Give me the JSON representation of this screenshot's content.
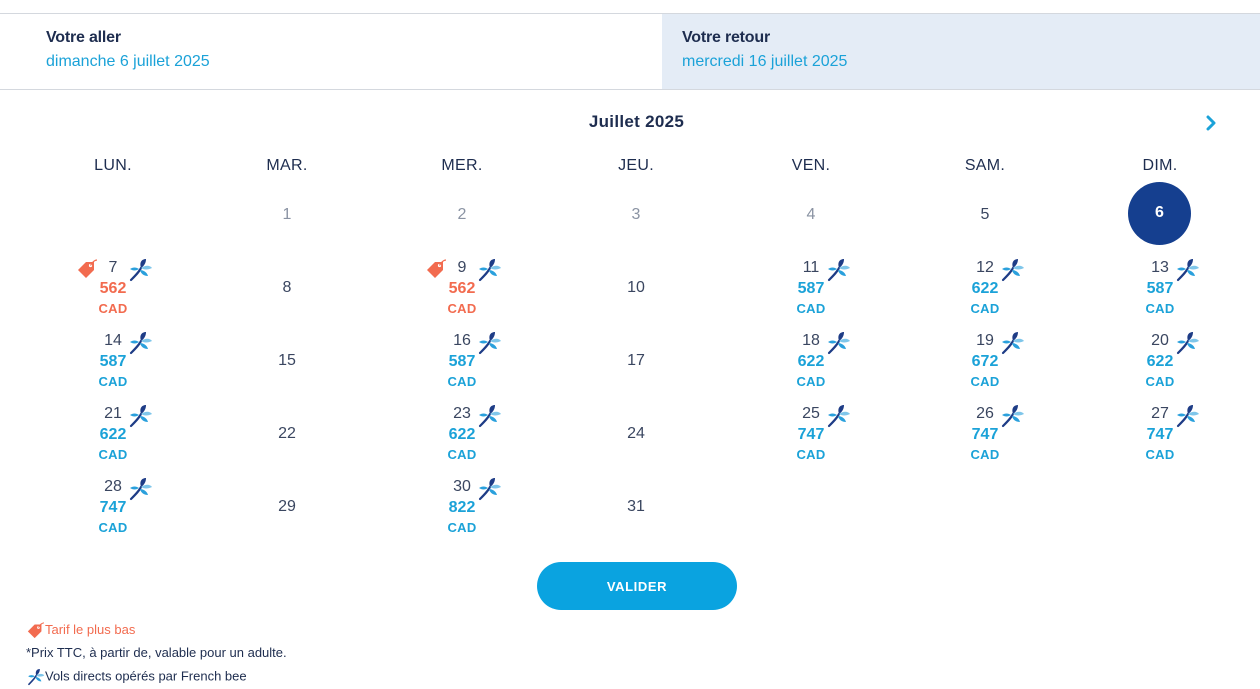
{
  "tabs": {
    "outbound": {
      "label": "Votre aller",
      "date": "dimanche 6 juillet 2025"
    },
    "return": {
      "label": "Votre retour",
      "date": "mercredi 16 juillet 2025"
    }
  },
  "calendar": {
    "month_title": "Juillet  2025",
    "weekdays": [
      "LUN.",
      "MAR.",
      "MER.",
      "JEU.",
      "VEN.",
      "SAM.",
      "DIM."
    ],
    "selected_day": "6",
    "days": {
      "d1": "1",
      "d2": "2",
      "d3": "3",
      "d4": "4",
      "d5": "5",
      "d7": "7",
      "d8": "8",
      "d9": "9",
      "d10": "10",
      "d11": "11",
      "d12": "12",
      "d13": "13",
      "d14": "14",
      "d15": "15",
      "d16": "16",
      "d17": "17",
      "d18": "18",
      "d19": "19",
      "d20": "20",
      "d21": "21",
      "d22": "22",
      "d23": "23",
      "d24": "24",
      "d25": "25",
      "d26": "26",
      "d27": "27",
      "d28": "28",
      "d29": "29",
      "d30": "30",
      "d31": "31"
    },
    "prices": {
      "d7": "562",
      "d9": "562",
      "d11": "587",
      "d12": "622",
      "d13": "587",
      "d14": "587",
      "d16": "587",
      "d18": "622",
      "d19": "672",
      "d20": "622",
      "d21": "622",
      "d23": "622",
      "d25": "747",
      "d26": "747",
      "d27": "747",
      "d28": "747",
      "d30": "822"
    },
    "currency": "CAD",
    "lowest_fare_days": [
      "7",
      "9"
    ]
  },
  "validate_button": "VALIDER",
  "legend": {
    "lowest_fare": "Tarif le plus bas",
    "price_note": "*Prix TTC, à partir de, valable pour un adulte.",
    "direct_flights": "Vols directs opérés par French bee"
  },
  "colors": {
    "accent": "#1ba2d8",
    "lowest": "#f26b4f",
    "selected": "#153f8f",
    "navy_text": "#1e2d4f",
    "return_tab_bg": "#e4ecf6"
  },
  "icons": {
    "next": "chevron-right-icon",
    "airline": "french-bee-icon",
    "tag": "price-tag-icon"
  }
}
